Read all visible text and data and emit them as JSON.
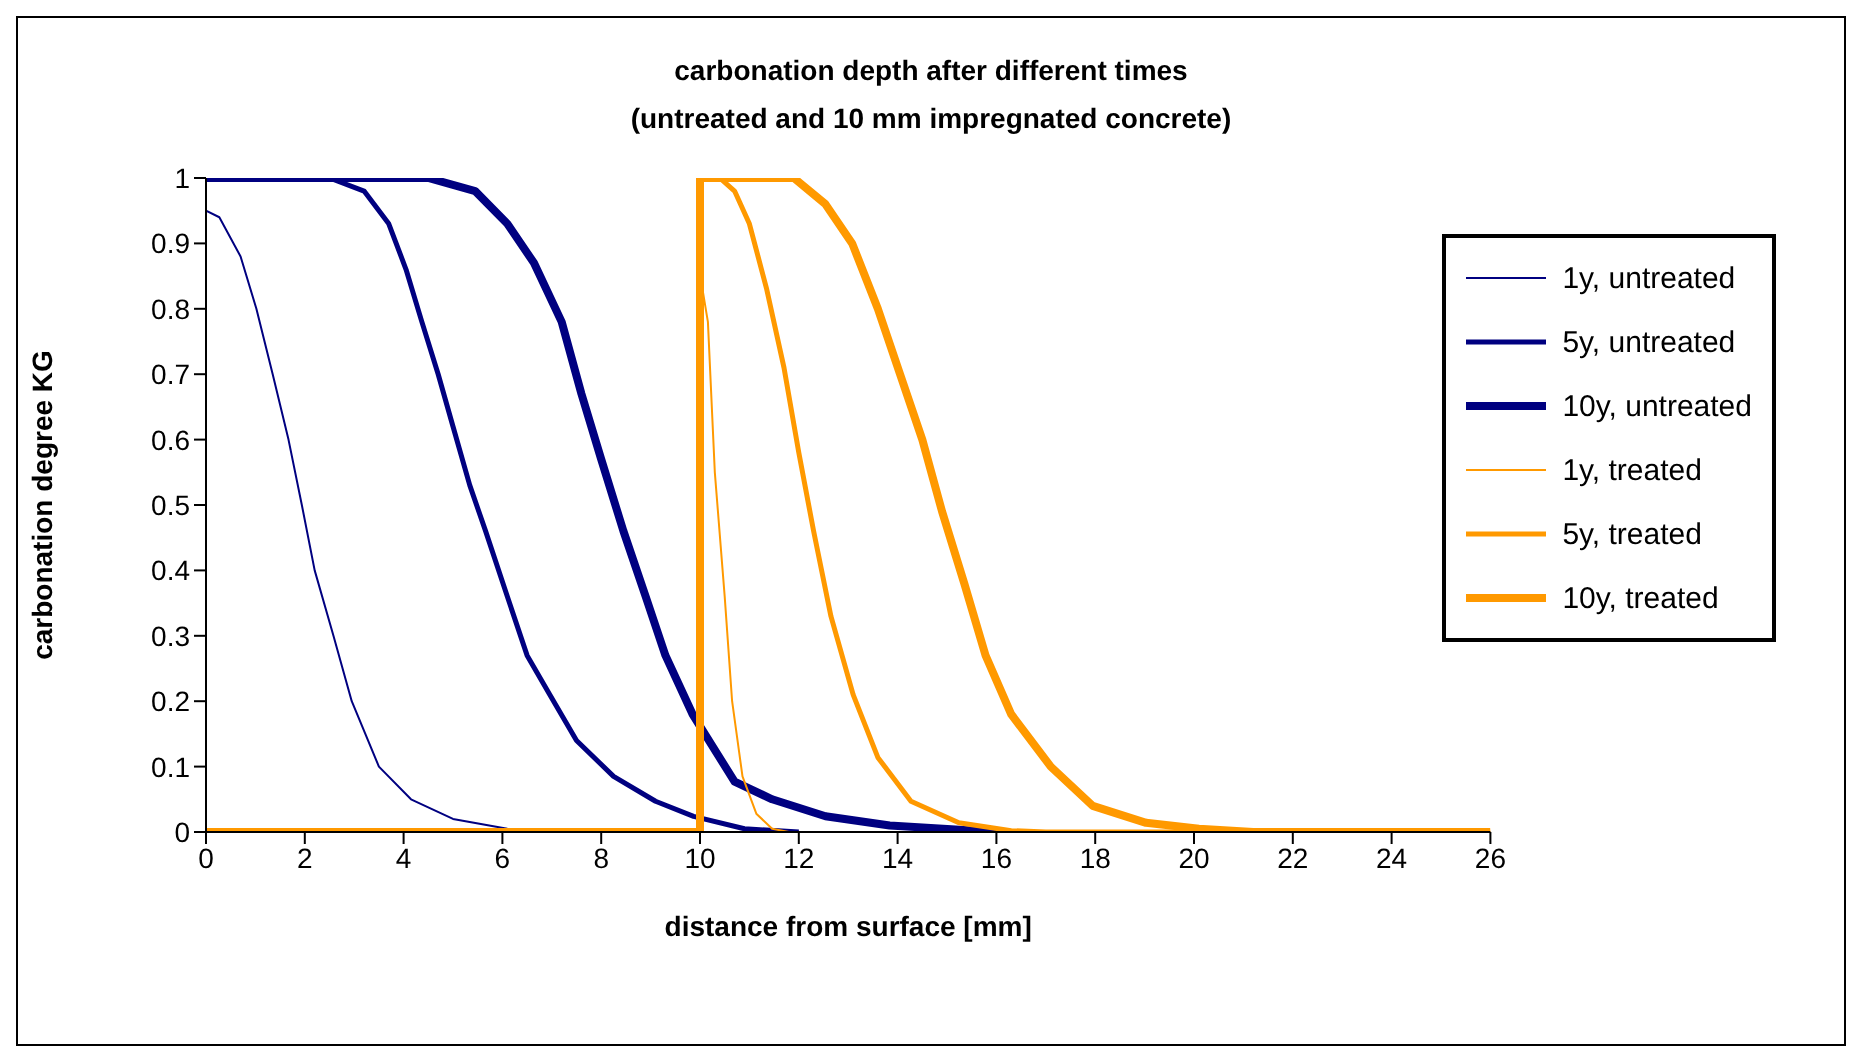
{
  "chart_data": {
    "type": "line",
    "title": "carbonation depth after different times",
    "subtitle": "(untreated and 10 mm impregnated concrete)",
    "xlabel": "distance from surface [mm]",
    "ylabel": "carbonation degree KG",
    "xlim": [
      0,
      26
    ],
    "xticks": [
      0,
      2,
      4,
      6,
      8,
      10,
      12,
      14,
      16,
      18,
      20,
      22,
      24,
      26
    ],
    "ylim": [
      0,
      1
    ],
    "yticks": [
      0,
      0.1,
      0.2,
      0.3,
      0.4,
      0.5,
      0.6,
      0.7,
      0.8,
      0.9,
      1
    ],
    "grid": false,
    "legend": "top right",
    "marker": "none",
    "line_style": "solid",
    "series": [
      {
        "name": "1y, untreated",
        "color": "#000080",
        "x": [
          0,
          0.27,
          0.7,
          1.02,
          1.35,
          1.67,
          1.94,
          2.2,
          2.58,
          2.95,
          3.5,
          4.15,
          5.0,
          6.1
        ],
        "values": [
          0.95,
          0.94,
          0.88,
          0.8,
          0.7,
          0.6,
          0.5,
          0.4,
          0.3,
          0.2,
          0.1,
          0.05,
          0.02,
          0.005
        ]
      },
      {
        "name": "5y, untreated",
        "color": "#000080",
        "x": [
          0,
          2.5,
          3.2,
          3.7,
          4.05,
          4.37,
          4.7,
          5.0,
          5.34,
          5.66,
          6.1,
          6.5,
          6.96,
          7.5,
          8.25,
          9.1,
          9.87,
          10.9,
          12
        ],
        "values": [
          1,
          1,
          0.98,
          0.93,
          0.86,
          0.78,
          0.7,
          0.62,
          0.53,
          0.46,
          0.36,
          0.27,
          0.21,
          0.14,
          0.085,
          0.047,
          0.024,
          0.005,
          0
        ]
      },
      {
        "name": "10y, untreated",
        "color": "#000080",
        "x": [
          0,
          4.5,
          5.45,
          6.1,
          6.64,
          7.2,
          7.6,
          8.0,
          8.45,
          8.9,
          9.3,
          9.85,
          10.7,
          11.46,
          12.54,
          13.84,
          16
        ],
        "values": [
          1,
          1,
          0.98,
          0.93,
          0.87,
          0.78,
          0.67,
          0.57,
          0.46,
          0.36,
          0.27,
          0.18,
          0.077,
          0.05,
          0.024,
          0.01,
          0
        ]
      },
      {
        "name": "1y, treated",
        "color": "#ff9900",
        "x": [
          0,
          10,
          10.05,
          10.16,
          10.3,
          10.5,
          10.65,
          10.86,
          11.14,
          11.46,
          11.8,
          26
        ],
        "values": [
          0,
          0,
          0.83,
          0.78,
          0.55,
          0.36,
          0.2,
          0.085,
          0.028,
          0.005,
          0,
          0
        ]
      },
      {
        "name": "5y, treated",
        "color": "#ff9900",
        "x": [
          0,
          10,
          10,
          10.4,
          10.7,
          11.0,
          11.35,
          11.7,
          12,
          12.3,
          12.65,
          13.1,
          13.6,
          14.27,
          15.24,
          16.3,
          17,
          26
        ],
        "values": [
          0,
          0,
          1,
          1,
          0.98,
          0.93,
          0.83,
          0.71,
          0.58,
          0.46,
          0.33,
          0.21,
          0.114,
          0.047,
          0.014,
          0.002,
          0,
          0
        ]
      },
      {
        "name": "10y, treated",
        "color": "#ff9900",
        "x": [
          0,
          10,
          10,
          11.9,
          12.54,
          13.08,
          13.6,
          14.05,
          14.5,
          14.9,
          15.35,
          15.78,
          16.3,
          17.1,
          17.95,
          19.03,
          20.1,
          21.2,
          26
        ],
        "values": [
          0,
          0,
          1,
          1,
          0.96,
          0.9,
          0.8,
          0.7,
          0.6,
          0.49,
          0.38,
          0.27,
          0.18,
          0.1,
          0.04,
          0.014,
          0.005,
          0,
          0
        ]
      }
    ]
  }
}
